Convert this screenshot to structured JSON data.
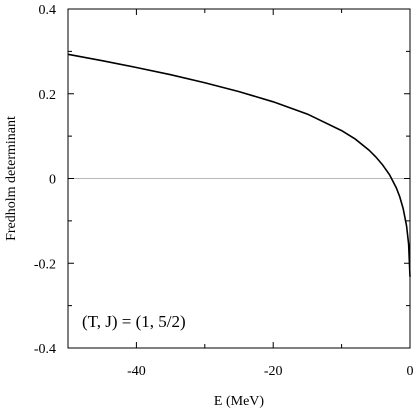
{
  "chart_data": {
    "type": "line",
    "title": "",
    "xlabel": "E (MeV)",
    "ylabel": "Fredholm determinant",
    "xlim": [
      -50,
      0
    ],
    "ylim": [
      -0.4,
      0.4
    ],
    "x_ticks": [
      -40,
      -20,
      0
    ],
    "x_tick_labels": [
      "-40",
      "-20",
      "0"
    ],
    "x_minor_ticks": [
      -50,
      -30,
      -10
    ],
    "y_ticks": [
      -0.4,
      -0.2,
      0,
      0.2,
      0.4
    ],
    "y_tick_labels": [
      "-0.4",
      "-0.2",
      "0",
      "0.2",
      "0.4"
    ],
    "y_minor_ticks": [
      -0.3,
      -0.1,
      0.1,
      0.3
    ],
    "reference_line_y": 0,
    "grid": false,
    "annotation": "(T, J) = (1, 5/2)",
    "colors": {
      "curve": "#000000",
      "zero_line": "#a0a0a0",
      "frame": "#000000"
    },
    "series": [
      {
        "x": [
          -50,
          -45,
          -40,
          -35,
          -30,
          -25,
          -20,
          -15,
          -10,
          -8,
          -6,
          -5,
          -4,
          -3,
          -2,
          -1.5,
          -1,
          -0.5,
          -0.2,
          0
        ],
        "y": [
          0.293,
          0.278,
          0.262,
          0.245,
          0.226,
          0.205,
          0.181,
          0.152,
          0.113,
          0.093,
          0.067,
          0.051,
          0.032,
          0.009,
          -0.022,
          -0.043,
          -0.071,
          -0.112,
          -0.155,
          -0.232
        ]
      }
    ]
  }
}
